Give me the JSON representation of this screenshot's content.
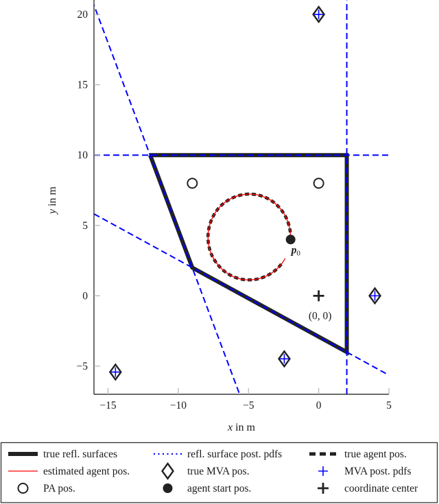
{
  "axes": {
    "x_label_var": "x",
    "x_label_unit": " in m",
    "y_label_var": "y",
    "y_label_unit": " in m"
  },
  "chart_data": {
    "type": "line",
    "title": "",
    "xlabel": "x in m",
    "ylabel": "y in m",
    "xlim": [
      -16,
      5
    ],
    "ylim": [
      -7,
      21
    ],
    "xticks": [
      -15,
      -10,
      -5,
      0,
      5
    ],
    "xtick_labels": [
      "−15",
      "−10",
      "−5",
      "0",
      "5"
    ],
    "yticks": [
      -5,
      0,
      5,
      10,
      15,
      20
    ],
    "ytick_labels": [
      "−5",
      "0",
      "5",
      "10",
      "15",
      "20"
    ],
    "grid": false,
    "legend_position": "below plot, boxed, 3 columns",
    "series": [
      {
        "name": "true refl. surfaces",
        "kind": "polyline",
        "color": "#222222",
        "width": 6,
        "points": [
          [
            -12,
            10
          ],
          [
            2,
            10
          ],
          [
            2,
            -4
          ],
          [
            -9,
            2
          ],
          [
            -12,
            10
          ]
        ]
      },
      {
        "name": "refl. surface post. pdfs",
        "kind": "segments",
        "color": "#0000ff",
        "width": 2,
        "dash": "9 5",
        "legend_dash": "2 4.5",
        "segments": [
          [
            [
              -16,
              10
            ],
            [
              5,
              10
            ]
          ],
          [
            [
              2,
              -7
            ],
            [
              2,
              21
            ]
          ],
          [
            [
              -16.13,
              21
            ],
            [
              -5.63,
              -7
            ]
          ],
          [
            [
              -16,
              5.82
            ],
            [
              5,
              -5.64
            ]
          ]
        ]
      },
      {
        "name": "true agent pos.",
        "kind": "path",
        "color": "#222222",
        "width": 4.5,
        "dash": "6 4",
        "legend_dash": "9 6",
        "points": [
          [
            -2.0,
            4.02
          ],
          [
            -2.05,
            4.71
          ],
          [
            -2.28,
            5.47
          ],
          [
            -2.69,
            6.14
          ],
          [
            -3.25,
            6.68
          ],
          [
            -3.94,
            7.05
          ],
          [
            -4.68,
            7.22
          ],
          [
            -5.45,
            7.18
          ],
          [
            -6.18,
            6.94
          ],
          [
            -6.83,
            6.52
          ],
          [
            -7.35,
            5.93
          ],
          [
            -7.7,
            5.22
          ],
          [
            -7.87,
            4.45
          ],
          [
            -7.84,
            3.65
          ],
          [
            -7.61,
            2.89
          ],
          [
            -7.19,
            2.22
          ],
          [
            -6.63,
            1.68
          ],
          [
            -5.95,
            1.31
          ],
          [
            -5.2,
            1.14
          ],
          [
            -4.43,
            1.18
          ],
          [
            -3.7,
            1.42
          ],
          [
            -3.05,
            1.84
          ],
          [
            -2.62,
            2.3
          ]
        ]
      },
      {
        "name": "estimated agent pos.",
        "kind": "path",
        "color": "#ff0000",
        "width": 1.3,
        "points": [
          [
            -2.0,
            4.02
          ],
          [
            -2.05,
            4.71
          ],
          [
            -2.28,
            5.47
          ],
          [
            -2.69,
            6.14
          ],
          [
            -3.25,
            6.68
          ],
          [
            -3.94,
            7.05
          ],
          [
            -4.68,
            7.22
          ],
          [
            -5.45,
            7.18
          ],
          [
            -6.18,
            6.94
          ],
          [
            -6.83,
            6.52
          ],
          [
            -7.35,
            5.93
          ],
          [
            -7.7,
            5.22
          ],
          [
            -7.87,
            4.45
          ],
          [
            -7.84,
            3.65
          ],
          [
            -7.61,
            2.89
          ],
          [
            -7.19,
            2.22
          ],
          [
            -6.63,
            1.68
          ],
          [
            -5.95,
            1.31
          ],
          [
            -5.2,
            1.14
          ],
          [
            -4.43,
            1.18
          ],
          [
            -3.7,
            1.42
          ],
          [
            -3.05,
            1.84
          ],
          [
            -2.62,
            2.3
          ],
          [
            -2.39,
            2.66
          ]
        ]
      },
      {
        "name": "true MVA pos.",
        "kind": "markers",
        "marker": "diamond",
        "color": "#222222",
        "points": [
          [
            0,
            20
          ],
          [
            4,
            0
          ],
          [
            -2.45,
            -4.48
          ],
          [
            -14.47,
            -5.42
          ]
        ]
      },
      {
        "name": "MVA post. pdfs",
        "kind": "markers",
        "marker": "plus",
        "color": "#0000ff",
        "points": [
          [
            0,
            20
          ],
          [
            4,
            0
          ],
          [
            -2.45,
            -4.48
          ],
          [
            -14.47,
            -5.42
          ]
        ]
      },
      {
        "name": "PA pos.",
        "kind": "markers",
        "marker": "circle-open",
        "color": "#222222",
        "points": [
          [
            -9,
            8
          ],
          [
            0,
            8
          ]
        ]
      },
      {
        "name": "agent start pos.",
        "kind": "markers",
        "marker": "circle-filled",
        "color": "#222222",
        "points": [
          [
            -2,
            4
          ]
        ]
      },
      {
        "name": "coordinate center",
        "kind": "markers",
        "marker": "plus-bold",
        "color": "#222222",
        "points": [
          [
            0,
            0
          ]
        ]
      }
    ],
    "annotations": [
      {
        "text": "p",
        "subscript": "0",
        "x": -2,
        "y": 4
      },
      {
        "text": "(0, 0)",
        "x": 0,
        "y": 0
      }
    ]
  }
}
